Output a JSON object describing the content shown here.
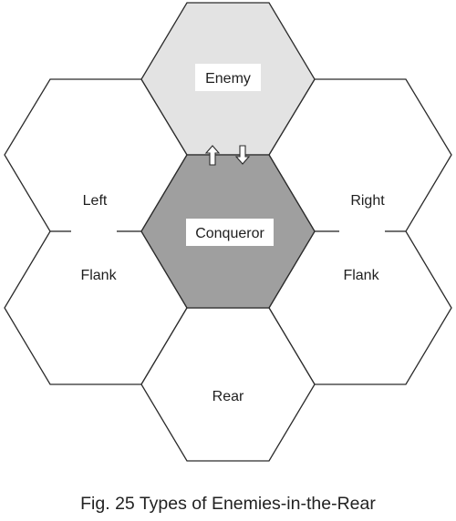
{
  "diagram": {
    "hexagons": {
      "enemy": {
        "label": "Enemy",
        "fill": "#e3e3e3"
      },
      "conqueror": {
        "label": "Conqueror",
        "fill": "#9f9f9f"
      },
      "left_upper": {
        "label": "Left",
        "fill": "#ffffff"
      },
      "left_lower": {
        "label": "Flank",
        "fill": "#ffffff"
      },
      "right_upper": {
        "label": "Right",
        "fill": "#ffffff"
      },
      "right_lower": {
        "label": "Flank",
        "fill": "#ffffff"
      },
      "rear": {
        "label": "Rear",
        "fill": "#ffffff"
      }
    },
    "arrows": [
      "up-arrow-icon",
      "down-arrow-icon"
    ],
    "colors": {
      "outline": "#2b2b2b",
      "label_box": "#ffffff"
    }
  },
  "caption": "Fig. 25 Types of Enemies-in-the-Rear"
}
